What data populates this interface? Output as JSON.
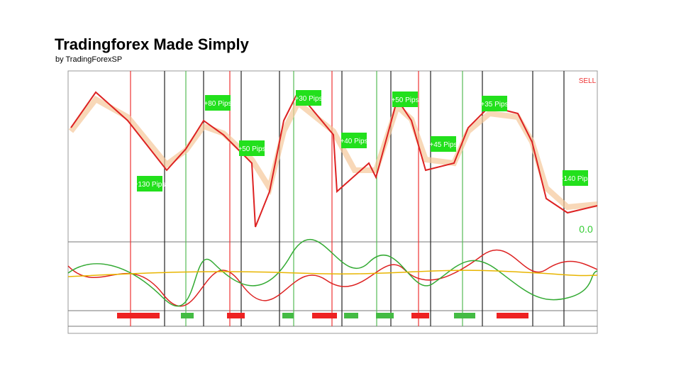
{
  "header": {
    "title": "Tradingforex Made Simply",
    "subtitle": "by TradingForexSP"
  },
  "chart": {
    "signal": "SELL",
    "pip_labels": [
      "+130 Pips",
      "+80 Pips",
      "+50 Pips",
      "+30 Pips",
      "+40 Pips",
      "+50 Pips",
      "+45 Pips",
      "+35 Pips",
      "+140 Pips"
    ],
    "counter": "0.0"
  }
}
